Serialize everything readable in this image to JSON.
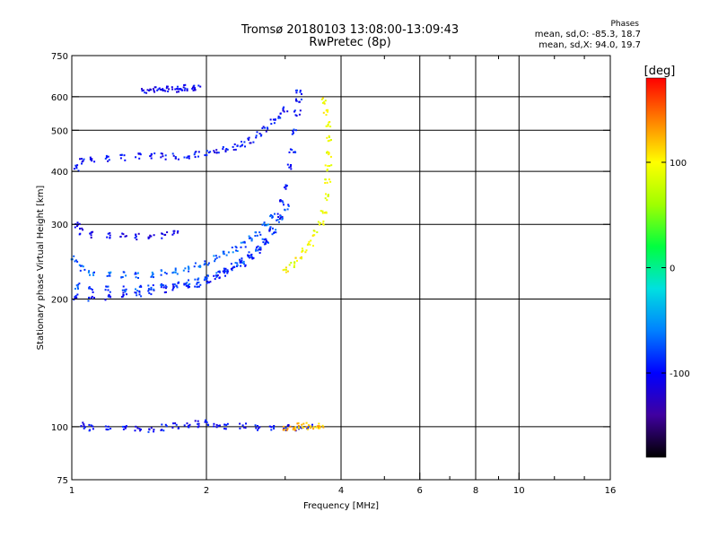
{
  "figure": {
    "title": "Tromsø 20180103 13:08:00-13:09:43",
    "subtitle": "RwPretec (8p)",
    "phase_summary": {
      "heading": "Phases",
      "o_mode": "mean, sd,O: -85.3, 18.7",
      "x_mode": "mean, sd,X:  94.0, 19.7"
    }
  },
  "chart_data": {
    "type": "scatter",
    "title": "Tromsø 20180103 13:08:00-13:09:43",
    "subtitle": "RwPretec (8p)",
    "xlabel": "Frequency [MHz]",
    "ylabel": "Stationary phase Virtual Height [km]",
    "xscale": "log",
    "yscale": "log",
    "xlim": [
      1,
      16
    ],
    "ylim": [
      75,
      750
    ],
    "x_ticks": [
      1,
      2,
      4,
      6,
      8,
      10,
      16
    ],
    "x_tick_labels": [
      "1",
      "2",
      "4",
      "6",
      "8",
      "10",
      "16"
    ],
    "x_minor_ticks": [
      3,
      5,
      7,
      9,
      12,
      14
    ],
    "y_ticks": [
      75,
      100,
      200,
      300,
      400,
      500,
      600,
      750
    ],
    "y_tick_labels": [
      "75",
      "100",
      "200",
      "300",
      "400",
      "500",
      "600",
      "750"
    ],
    "grid_lines_x": [
      2,
      4,
      6,
      8,
      10
    ],
    "grid_lines_y": [
      100,
      200,
      300,
      400,
      500,
      600
    ],
    "grid": true,
    "colorbar": {
      "label": "[deg]",
      "range": [
        -180,
        180
      ],
      "ticks": [
        100,
        0,
        -100
      ],
      "tick_labels": [
        "100",
        "0",
        "-100"
      ],
      "stops": [
        "#000000",
        "#4000a0",
        "#0000ff",
        "#0080ff",
        "#00e0e0",
        "#00ff40",
        "#a0ff00",
        "#ffff00",
        "#ff8000",
        "#ff0000"
      ]
    },
    "series": [
      {
        "mode": "O",
        "phase_deg": -95,
        "x": [
          1.02,
          1.1,
          1.2,
          1.3,
          1.4,
          1.5,
          1.6,
          1.7,
          1.8,
          1.9,
          2.0,
          2.1,
          2.2,
          2.3,
          2.4,
          2.5,
          2.6,
          2.7,
          2.8,
          2.9,
          2.95,
          3.0,
          3.05,
          3.1,
          3.15,
          3.18,
          3.2,
          3.2
        ],
        "y": [
          203,
          202,
          203,
          205,
          207,
          209,
          211,
          213,
          215,
          218,
          222,
          226,
          231,
          237,
          244,
          252,
          262,
          275,
          292,
          315,
          340,
          370,
          410,
          450,
          500,
          550,
          590,
          620
        ]
      },
      {
        "mode": "O",
        "phase_deg": -80,
        "x": [
          1.02,
          1.1,
          1.2,
          1.3,
          1.4,
          1.5,
          1.6,
          1.7,
          1.8,
          1.9,
          2.0,
          2.1,
          2.2,
          2.3,
          2.4,
          2.5,
          2.6,
          2.7,
          2.8,
          2.9,
          3.0
        ],
        "y": [
          215,
          212,
          212,
          212,
          213,
          214,
          215,
          217,
          219,
          222,
          226,
          230,
          235,
          241,
          248,
          256,
          265,
          276,
          290,
          310,
          330
        ]
      },
      {
        "mode": "O",
        "phase_deg": -70,
        "x": [
          1.01,
          1.05,
          1.1,
          1.2,
          1.3,
          1.4,
          1.5,
          1.6,
          1.7,
          1.8,
          1.9,
          2.0,
          2.1,
          2.2,
          2.3,
          2.4,
          2.5,
          2.6,
          2.7,
          2.8
        ],
        "y": [
          250,
          238,
          232,
          230,
          229,
          229,
          230,
          232,
          234,
          237,
          241,
          245,
          250,
          256,
          263,
          270,
          278,
          288,
          300,
          315
        ]
      },
      {
        "mode": "O",
        "phase_deg": -100,
        "x": [
          1.02,
          1.05,
          1.1,
          1.2,
          1.3,
          1.4,
          1.5,
          1.6,
          1.7,
          1.8,
          1.9,
          2.0,
          2.1,
          2.2,
          2.3,
          2.4,
          2.5,
          2.6,
          2.7,
          2.8,
          2.9,
          3.0
        ],
        "y": [
          410,
          425,
          430,
          432,
          434,
          436,
          436,
          436,
          436,
          437,
          440,
          443,
          447,
          452,
          458,
          466,
          476,
          490,
          505,
          525,
          545,
          560
        ]
      },
      {
        "mode": "O",
        "phase_deg": -110,
        "x": [
          1.02,
          1.05,
          1.1,
          1.2,
          1.3,
          1.4,
          1.5,
          1.6,
          1.7
        ],
        "y": [
          300,
          290,
          285,
          283,
          282,
          282,
          283,
          284,
          286
        ]
      },
      {
        "mode": "O",
        "phase_deg": -100,
        "x": [
          1.05,
          1.1,
          1.2,
          1.3,
          1.4,
          1.5,
          1.6,
          1.7,
          1.8,
          1.9,
          2.0,
          2.1,
          2.2,
          2.4,
          2.6,
          2.8,
          3.0,
          3.2,
          3.4
        ],
        "y": [
          101,
          100,
          100,
          100,
          100,
          99,
          100,
          101,
          101,
          102,
          103,
          102,
          101,
          101,
          100,
          100,
          100,
          100,
          101
        ]
      },
      {
        "mode": "O",
        "phase_deg": -105,
        "x": [
          1.45,
          1.5,
          1.55,
          1.6,
          1.65,
          1.7,
          1.75,
          1.8,
          1.85,
          1.9
        ],
        "y": [
          620,
          628,
          630,
          632,
          630,
          628,
          630,
          632,
          633,
          634
        ]
      },
      {
        "mode": "X",
        "phase_deg": 95,
        "x": [
          3.0,
          3.1,
          3.2,
          3.3,
          3.4,
          3.5,
          3.6,
          3.65,
          3.7,
          3.72,
          3.73,
          3.74,
          3.74,
          3.73,
          3.7,
          3.65
        ],
        "y": [
          235,
          242,
          250,
          260,
          272,
          287,
          305,
          325,
          350,
          380,
          410,
          440,
          480,
          520,
          555,
          590
        ]
      },
      {
        "mode": "X",
        "phase_deg": 120,
        "x": [
          3.0,
          3.1,
          3.2,
          3.3,
          3.4,
          3.5,
          3.6
        ],
        "y": [
          100,
          100,
          101,
          101,
          100,
          100,
          101
        ]
      }
    ]
  }
}
